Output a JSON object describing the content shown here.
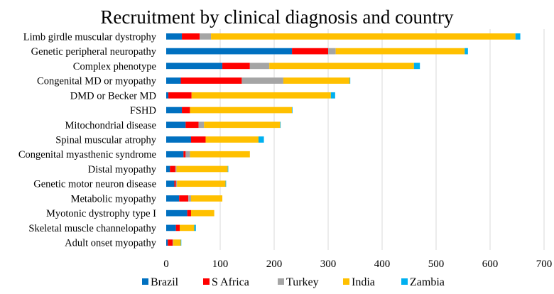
{
  "chart_data": {
    "type": "bar",
    "orientation": "horizontal",
    "stacked": true,
    "title": "Recruitment by clinical diagnosis and country",
    "xlabel": "",
    "ylabel": "",
    "xlim": [
      0,
      700
    ],
    "x_ticks": [
      0,
      100,
      200,
      300,
      400,
      500,
      600,
      700
    ],
    "grid": "vertical",
    "legend_position": "bottom",
    "categories": [
      "Limb girdle muscular dystrophy",
      "Genetic peripheral neuropathy",
      "Complex phenotype",
      "Congenital MD or myopathy",
      "DMD or Becker MD",
      "FSHD",
      "Mitochondrial disease",
      "Spinal muscular atrophy",
      "Congenital myasthenic syndrome",
      "Distal myopathy",
      "Genetic motor neuron disease",
      "Metabolic myopathy",
      "Myotonic dystrophy type I",
      "Skeletal muscle channelopathy",
      "Adult onset myopathy"
    ],
    "series": [
      {
        "name": "Brazil",
        "color": "#0070c0",
        "values": [
          29,
          233,
          104,
          27,
          4,
          29,
          36,
          46,
          32,
          7,
          15,
          24,
          39,
          18,
          3
        ]
      },
      {
        "name": "S Africa",
        "color": "#ff0000",
        "values": [
          33,
          67,
          51,
          113,
          43,
          15,
          24,
          27,
          4,
          10,
          3,
          17,
          7,
          7,
          9
        ]
      },
      {
        "name": "Turkey",
        "color": "#a5a5a5",
        "values": [
          21,
          14,
          36,
          77,
          0,
          0,
          10,
          0,
          8,
          2,
          2,
          5,
          0,
          0,
          1
        ]
      },
      {
        "name": "India",
        "color": "#ffc000",
        "values": [
          564,
          239,
          268,
          123,
          258,
          189,
          141,
          98,
          111,
          95,
          90,
          58,
          43,
          27,
          14
        ]
      },
      {
        "name": "Zambia",
        "color": "#00b0f0",
        "values": [
          9,
          6,
          11,
          1,
          8,
          1,
          1,
          10,
          0,
          1,
          1,
          0,
          0,
          3,
          1
        ]
      }
    ]
  }
}
